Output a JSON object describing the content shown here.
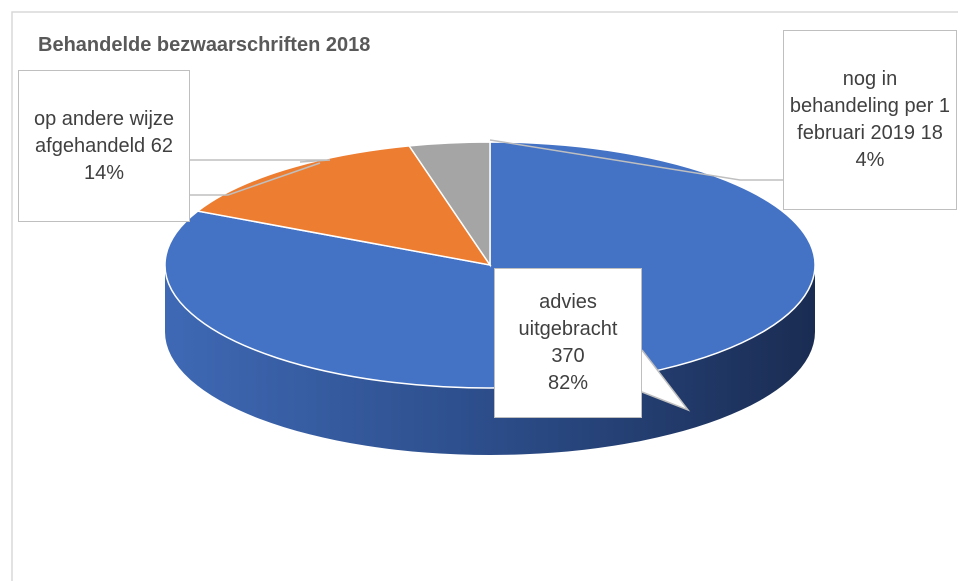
{
  "chart_data": {
    "type": "pie",
    "title": "Behandelde bezwaarschriften 2018",
    "categories": [
      "advies uitgebracht",
      "op andere wijze afgehandeld",
      "nog in behandeling per 1 februari 2019"
    ],
    "values": [
      370,
      62,
      18
    ],
    "percent_labels": [
      "82%",
      "14%",
      "4%"
    ],
    "colors": [
      "#4472c4",
      "#ed7d31",
      "#a5a5a5"
    ]
  }
}
